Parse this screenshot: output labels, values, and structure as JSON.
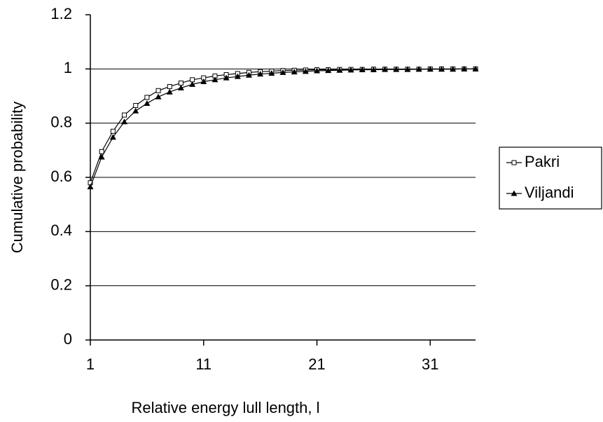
{
  "chart_data": {
    "type": "line",
    "xlabel": "Relative energy lull length, l",
    "ylabel": "Cumulative probability",
    "x": [
      1,
      2,
      3,
      4,
      5,
      6,
      7,
      8,
      9,
      10,
      11,
      12,
      13,
      14,
      15,
      16,
      17,
      18,
      19,
      20,
      21,
      22,
      23,
      24,
      25,
      26,
      27,
      28,
      29,
      30,
      31,
      32,
      33,
      34,
      35
    ],
    "series": [
      {
        "name": "Pakri",
        "color": "#000000",
        "marker": "open-square",
        "values": [
          0.58,
          0.695,
          0.77,
          0.83,
          0.865,
          0.895,
          0.92,
          0.935,
          0.948,
          0.96,
          0.967,
          0.974,
          0.979,
          0.983,
          0.987,
          0.99,
          0.992,
          0.994,
          0.995,
          0.996,
          0.997,
          0.997,
          0.998,
          0.998,
          0.998,
          0.999,
          0.999,
          0.999,
          0.999,
          0.999,
          1.0,
          1.0,
          1.0,
          1.0,
          1.0
        ]
      },
      {
        "name": "Viljandi",
        "color": "#000000",
        "marker": "filled-triangle",
        "values": [
          0.565,
          0.675,
          0.748,
          0.805,
          0.845,
          0.873,
          0.897,
          0.915,
          0.93,
          0.943,
          0.953,
          0.96,
          0.967,
          0.972,
          0.977,
          0.981,
          0.984,
          0.987,
          0.989,
          0.991,
          0.993,
          0.994,
          0.995,
          0.996,
          0.997,
          0.997,
          0.998,
          0.998,
          0.998,
          0.999,
          0.999,
          0.999,
          0.999,
          1.0,
          1.0
        ]
      }
    ],
    "xlim": [
      1,
      35
    ],
    "xticks": [
      1,
      11,
      21,
      31
    ],
    "ylim": [
      0,
      1.2
    ],
    "yticks": [
      0,
      0.2,
      0.4,
      0.6,
      0.8,
      1,
      1.2
    ],
    "grid": true,
    "legend": "right"
  }
}
